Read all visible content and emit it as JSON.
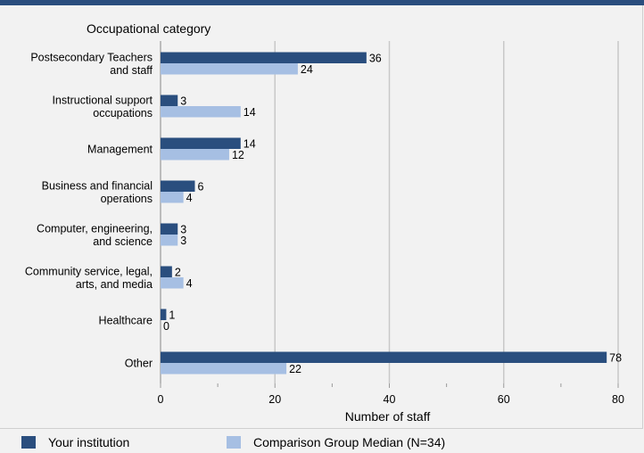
{
  "chart_data": {
    "type": "bar",
    "orientation": "horizontal",
    "ylabel": "Occupational category",
    "xlabel": "Number of staff",
    "xlim": [
      0,
      80
    ],
    "x_ticks": [
      "0",
      "20",
      "40",
      "60",
      "80"
    ],
    "grid": true,
    "categories": [
      [
        "Postsecondary Teachers",
        "and staff"
      ],
      [
        "Instructional support",
        "occupations"
      ],
      [
        "Management"
      ],
      [
        "Business and financial",
        "operations"
      ],
      [
        "Computer, engineering,",
        "and science"
      ],
      [
        "Community service, legal,",
        "arts, and media"
      ],
      [
        "Healthcare"
      ],
      [
        "Other"
      ]
    ],
    "series": [
      {
        "name": "Your institution",
        "color": "#2a4e7e",
        "values": [
          36,
          3,
          14,
          6,
          3,
          2,
          1,
          78
        ]
      },
      {
        "name": "Comparison Group Median (N=34)",
        "color": "#a6bfe3",
        "values": [
          24,
          14,
          12,
          4,
          3,
          4,
          0,
          22
        ]
      }
    ],
    "legend_position": "bottom"
  }
}
